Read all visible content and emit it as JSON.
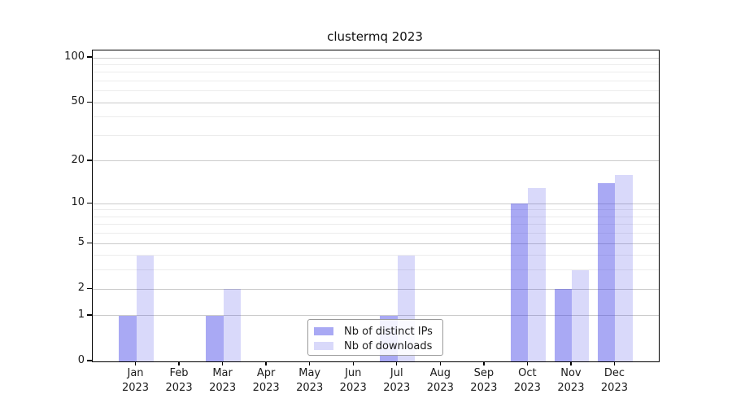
{
  "title": "clustermq 2023",
  "legend": {
    "items": [
      {
        "label": "Nb of distinct IPs"
      },
      {
        "label": "Nb of downloads"
      }
    ]
  },
  "chart_data": {
    "type": "bar",
    "title": "clustermq 2023",
    "x_months": [
      "Jan",
      "Feb",
      "Mar",
      "Apr",
      "May",
      "Jun",
      "Jul",
      "Aug",
      "Sep",
      "Oct",
      "Nov",
      "Dec"
    ],
    "x_year": "2023",
    "series": [
      {
        "name": "Nb of distinct IPs",
        "color_solid": "#a9a9f4",
        "color_rgba": "rgba(64,64,231,0.45)",
        "values": [
          1,
          0,
          1,
          0,
          0,
          0,
          1,
          0,
          0,
          10,
          2,
          14
        ]
      },
      {
        "name": "Nb of downloads",
        "color_solid": "#d9d9fa",
        "color_rgba": "rgba(64,64,231,0.20)",
        "values": [
          4,
          0,
          2,
          0,
          0,
          0,
          4,
          0,
          0,
          13,
          3,
          16
        ]
      }
    ],
    "y_scale": "log1p",
    "y_major_ticks": [
      0,
      1,
      2,
      5,
      10,
      20,
      50,
      100
    ],
    "y_minor_gridlines": [
      3,
      4,
      6,
      7,
      8,
      9,
      30,
      40,
      60,
      70,
      80,
      90
    ],
    "ylim": [
      0,
      112
    ],
    "grid": "horizontal-only",
    "legend_position": "inside-bottom-center",
    "bar_group_width_ratio": 0.8,
    "colors": {
      "major_grid": "#cbcbcb",
      "minor_grid": "#ececec",
      "axis": "#000000",
      "text": "#1a1a1a",
      "background": "#ffffff"
    }
  }
}
